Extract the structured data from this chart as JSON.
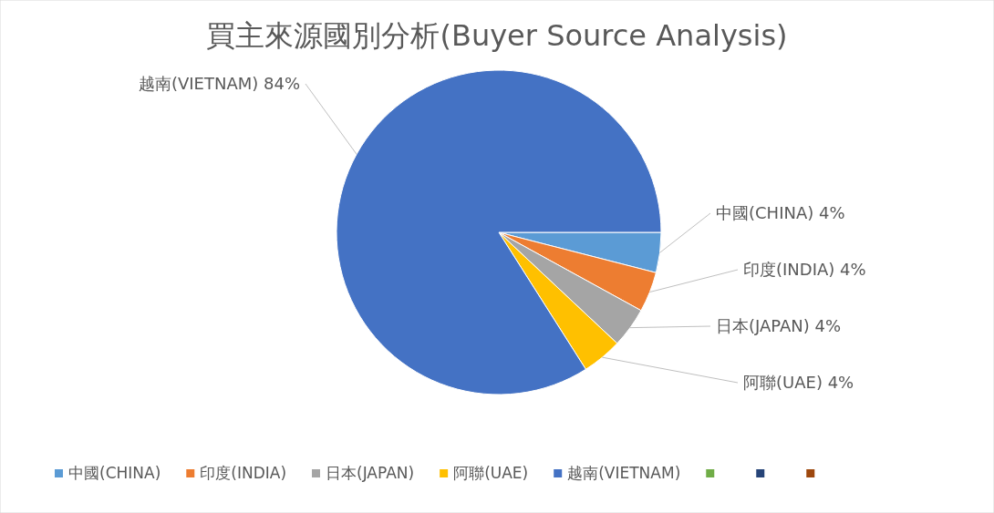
{
  "chart_data": {
    "type": "pie",
    "title": "買主來源國別分析(Buyer Source Analysis)",
    "categories": [
      "中國(CHINA)",
      "印度(INDIA)",
      "日本(JAPAN)",
      "阿聯(UAE)",
      "越南(VIETNAM)",
      null,
      null,
      null
    ],
    "values": [
      4,
      4,
      4,
      4,
      84,
      0,
      0,
      0
    ],
    "value_labels": [
      "4%",
      "4%",
      "4%",
      "4%",
      "84%",
      null,
      null,
      null
    ],
    "colors": [
      "#5b9bd5",
      "#ed7d31",
      "#a5a5a5",
      "#ffc000",
      "#4472c4",
      "#70ad47",
      "#264478",
      "#9e480e"
    ],
    "legend": "bottom"
  }
}
